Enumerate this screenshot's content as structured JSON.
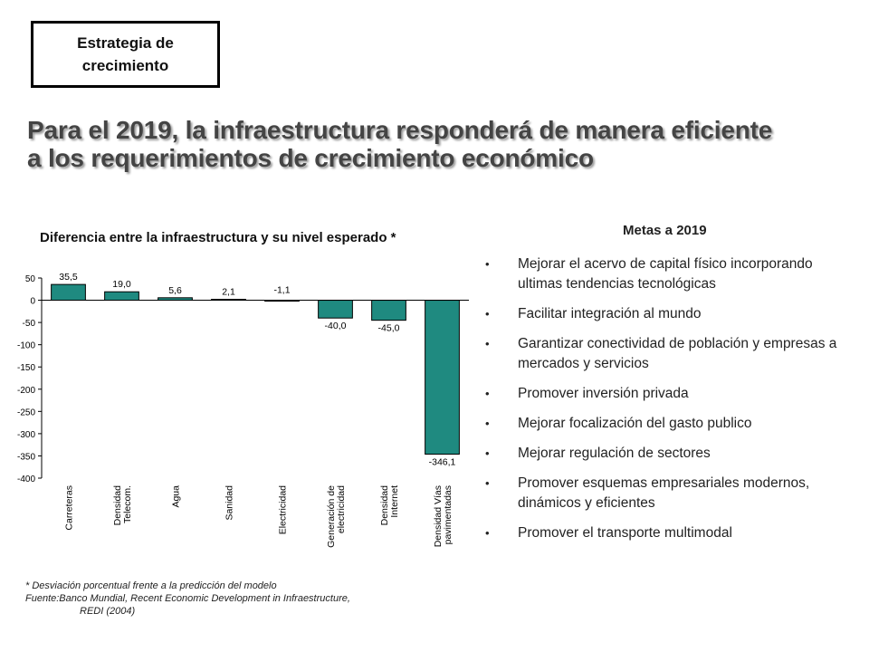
{
  "badge": {
    "label": "Estrategia de crecimiento"
  },
  "headline": {
    "line1": "Para el 2019, la infraestructura responderá de manera eficiente",
    "line2": "a los requerimientos de crecimiento económico"
  },
  "chart_data": {
    "type": "bar",
    "title": "Diferencia entre la infraestructura y su nivel esperado *",
    "xlabel": "",
    "ylabel": "",
    "categories": [
      "Carreteras",
      "Densidad Telecom.",
      "Agua",
      "Sanidad",
      "Electricidad",
      "Generación de electricidad",
      "Densidad Internet",
      "Densidad Vías pavimentadas"
    ],
    "category_lines": [
      [
        "Carreteras"
      ],
      [
        "Densidad",
        "Telecom."
      ],
      [
        "Agua"
      ],
      [
        "Sanidad"
      ],
      [
        "Electricidad"
      ],
      [
        "Generación de",
        "electricidad"
      ],
      [
        "Densidad",
        "Internet"
      ],
      [
        "Densidad Vías",
        "pavimentadas"
      ]
    ],
    "values": [
      35.5,
      19.0,
      5.6,
      2.1,
      -1.1,
      -40.0,
      -45.0,
      -346.1
    ],
    "value_labels": [
      "35,5",
      "19,0",
      "5,6",
      "2,1",
      "-1,1",
      "-40,0",
      "-45,0",
      "-346,1"
    ],
    "ylim": [
      -400,
      50
    ],
    "yticks": [
      50,
      0,
      -50,
      -100,
      -150,
      -200,
      -250,
      -300,
      -350,
      -400
    ],
    "bar_color": "#1f8a80",
    "grid": false,
    "legend": "none"
  },
  "notes": {
    "line1": "* Desviación porcentual frente a la predicción del modelo",
    "line2": "Fuente:Banco Mundial, Recent Economic Development in Infraestructure,",
    "line3": "REDI (2004)"
  },
  "goals": {
    "title": "Metas a 2019",
    "bullet": "•",
    "items": [
      "Mejorar el acervo de capital físico incorporando ultimas tendencias tecnológicas",
      "Facilitar integración al mundo",
      "Garantizar conectividad de población y empresas a mercados y servicios",
      "Promover inversión privada",
      "Mejorar focalización del gasto publico",
      "Mejorar regulación de sectores",
      "Promover esquemas empresariales modernos, dinámicos y eficientes",
      "Promover el transporte multimodal"
    ]
  }
}
